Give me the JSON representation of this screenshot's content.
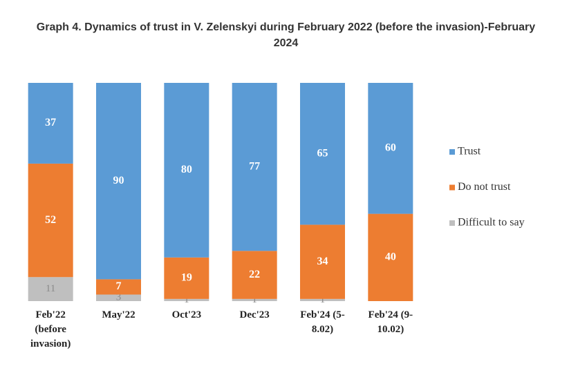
{
  "chart_data": {
    "type": "stacked_bar",
    "title": "Graph 4. Dynamics of trust in V. Zelenskyi during February 2022 (before the invasion)-February 2024",
    "categories": [
      "Feb'22 (before invasion)",
      "May'22",
      "Oct'23",
      "Dec'23",
      "Feb'24 (5-8.02)",
      "Feb'24 (9-10.02)"
    ],
    "series": [
      {
        "name": "Trust",
        "color": "#5b9bd5",
        "values": [
          37,
          90,
          80,
          77,
          65,
          60
        ]
      },
      {
        "name": "Do not trust",
        "color": "#ed7d31",
        "values": [
          52,
          7,
          19,
          22,
          34,
          40
        ]
      },
      {
        "name": "Difficult to say",
        "color": "#bfbfbf",
        "values": [
          11,
          3,
          1,
          1,
          1,
          0
        ]
      }
    ],
    "ylim": [
      0,
      100
    ]
  }
}
